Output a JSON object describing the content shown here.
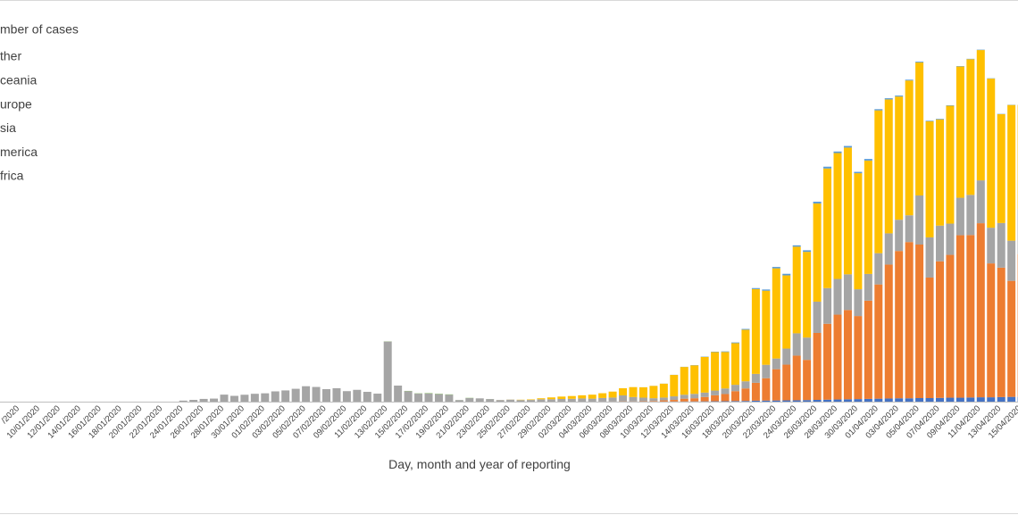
{
  "chart_data": {
    "type": "stacked-bar",
    "legend_title": "mber of cases",
    "x_axis_label": "Day, month and year of reporting",
    "ylim": [
      0,
      100000
    ],
    "categories": [
      "/2020",
      null,
      "10/01/2020",
      null,
      "12/01/2020",
      null,
      "14/01/2020",
      null,
      "16/01/2020",
      null,
      "18/01/2020",
      null,
      "20/01/2020",
      null,
      "22/01/2020",
      null,
      "24/01/2020",
      null,
      "26/01/2020",
      null,
      "28/01/2020",
      null,
      "30/01/2020",
      null,
      "01/02/2020",
      null,
      "03/02/2020",
      null,
      "05/02/2020",
      null,
      "07/02/2020",
      null,
      "09/02/2020",
      null,
      "11/02/2020",
      null,
      "13/02/2020",
      null,
      "15/02/2020",
      null,
      "17/02/2020",
      null,
      "19/02/2020",
      null,
      "21/02/2020",
      null,
      "23/02/2020",
      null,
      "25/02/2020",
      null,
      "27/02/2020",
      null,
      "29/02/2020",
      null,
      "02/03/2020",
      null,
      "04/03/2020",
      null,
      "06/03/2020",
      null,
      "08/03/2020",
      null,
      "10/03/2020",
      null,
      "12/03/2020",
      null,
      "14/03/2020",
      null,
      "16/03/2020",
      null,
      "18/03/2020",
      null,
      "20/03/2020",
      null,
      "22/03/2020",
      null,
      "24/03/2020",
      null,
      "26/03/2020",
      null,
      "28/03/2020",
      null,
      "30/03/2020",
      null,
      "01/04/2020",
      null,
      "03/04/2020",
      null,
      "05/04/2020",
      null,
      "07/04/2020",
      null,
      "09/04/2020",
      null,
      "11/04/2020",
      null,
      "13/04/2020",
      null,
      "15/04/2020"
    ],
    "series": [
      {
        "name": "frica",
        "color": "#4472c4",
        "values": [
          0,
          0,
          0,
          0,
          0,
          0,
          0,
          0,
          0,
          0,
          0,
          0,
          0,
          0,
          0,
          0,
          0,
          0,
          0,
          0,
          0,
          0,
          0,
          0,
          0,
          0,
          0,
          0,
          0,
          0,
          0,
          0,
          0,
          0,
          0,
          0,
          0,
          0,
          0,
          0,
          0,
          0,
          0,
          0,
          0,
          0,
          0,
          0,
          0,
          0,
          0,
          0,
          0,
          0,
          0,
          0,
          0,
          2,
          5,
          10,
          10,
          20,
          20,
          30,
          40,
          50,
          60,
          80,
          100,
          120,
          150,
          180,
          250,
          280,
          300,
          330,
          350,
          400,
          450,
          500,
          550,
          600,
          650,
          700,
          750,
          800,
          850,
          850,
          900,
          900,
          950,
          1000,
          1000,
          1050,
          1100,
          1100,
          1150,
          1200,
          1200
        ]
      },
      {
        "name": "merica",
        "color": "#ed7d31",
        "values": [
          0,
          0,
          0,
          0,
          0,
          0,
          0,
          0,
          0,
          0,
          0,
          0,
          0,
          0,
          0,
          0,
          0,
          0,
          0,
          0,
          0,
          0,
          0,
          0,
          0,
          0,
          0,
          0,
          0,
          0,
          0,
          0,
          0,
          0,
          0,
          0,
          0,
          0,
          0,
          0,
          0,
          0,
          0,
          0,
          0,
          0,
          0,
          0,
          0,
          0,
          0,
          0,
          0,
          0,
          0,
          5,
          10,
          20,
          30,
          70,
          50,
          100,
          150,
          300,
          400,
          700,
          800,
          1100,
          1500,
          1800,
          2500,
          3150,
          4500,
          5630,
          7880,
          9000,
          11250,
          10130,
          16880,
          19130,
          21380,
          22500,
          20930,
          24750,
          28800,
          33750,
          37130,
          39380,
          38700,
          30380,
          34430,
          36000,
          40950,
          40950,
          43880,
          33750,
          32630,
          29250,
          36000
        ]
      },
      {
        "name": "sia",
        "color": "#a5a5a5",
        "values": [
          0,
          0,
          0,
          0,
          0,
          0,
          0,
          0,
          0,
          0,
          0,
          0,
          0,
          0,
          0,
          0,
          260,
          450,
          690,
          770,
          1770,
          1460,
          1740,
          1980,
          2100,
          2590,
          2830,
          3240,
          3890,
          3700,
          3150,
          3390,
          2650,
          2980,
          2470,
          2020,
          15150,
          4050,
          2640,
          2010,
          2050,
          1890,
          1750,
          400,
          890,
          830,
          650,
          410,
          510,
          410,
          430,
          600,
          620,
          680,
          720,
          800,
          750,
          900,
          1000,
          1500,
          1100,
          900,
          700,
          700,
          900,
          1000,
          1100,
          1100,
          1200,
          1400,
          1600,
          1800,
          2250,
          3380,
          2700,
          4050,
          5630,
          5630,
          7880,
          9000,
          9000,
          9000,
          6750,
          6750,
          7880,
          7880,
          7880,
          6750,
          12380,
          10130,
          9000,
          7880,
          9450,
          10130,
          10800,
          9000,
          11250,
          10130,
          11250
        ]
      },
      {
        "name": "urope",
        "color": "#ffc000",
        "values": [
          0,
          0,
          0,
          0,
          0,
          0,
          0,
          0,
          0,
          0,
          0,
          0,
          0,
          0,
          0,
          0,
          0,
          0,
          0,
          0,
          0,
          0,
          0,
          0,
          0,
          0,
          0,
          0,
          0,
          0,
          0,
          0,
          0,
          0,
          0,
          0,
          0,
          0,
          0,
          0,
          0,
          0,
          0,
          0,
          0,
          0,
          0,
          10,
          20,
          80,
          130,
          250,
          450,
          600,
          700,
          800,
          1000,
          1200,
          1500,
          1800,
          2500,
          2600,
          3100,
          3500,
          5400,
          7000,
          7200,
          9000,
          9700,
          9200,
          10500,
          13000,
          21380,
          18680,
          22730,
          18450,
          21830,
          21600,
          24750,
          30150,
          31730,
          31950,
          29250,
          28580,
          36000,
          33750,
          31050,
          33980,
          33530,
          29250,
          26780,
          29700,
          33080,
          34200,
          32850,
          37580,
          27450,
          34200,
          26330
        ]
      },
      {
        "name": "ceania",
        "color": "#5b9bd5",
        "values": [
          0,
          0,
          0,
          0,
          0,
          0,
          0,
          0,
          0,
          0,
          0,
          0,
          0,
          0,
          0,
          0,
          0,
          0,
          0,
          0,
          0,
          0,
          0,
          0,
          0,
          0,
          0,
          0,
          0,
          0,
          0,
          0,
          0,
          0,
          0,
          0,
          0,
          0,
          0,
          0,
          0,
          0,
          0,
          0,
          0,
          0,
          0,
          0,
          0,
          0,
          0,
          0,
          0,
          0,
          0,
          0,
          0,
          0,
          1,
          2,
          5,
          10,
          15,
          20,
          30,
          40,
          60,
          80,
          100,
          150,
          180,
          200,
          250,
          300,
          350,
          400,
          350,
          400,
          450,
          450,
          400,
          400,
          350,
          400,
          300,
          300,
          250,
          200,
          200,
          150,
          150,
          120,
          100,
          100,
          100,
          80,
          70,
          60,
          50
        ]
      },
      {
        "name": "ther",
        "color": "#70ad47",
        "values": [
          0,
          0,
          0,
          0,
          0,
          0,
          0,
          0,
          0,
          0,
          0,
          0,
          0,
          0,
          0,
          0,
          0,
          0,
          0,
          0,
          0,
          0,
          0,
          0,
          0,
          0,
          0,
          0,
          0,
          0,
          0,
          0,
          0,
          0,
          0,
          0,
          44,
          0,
          67,
          70,
          99,
          88,
          79,
          13,
          57,
          0,
          14,
          0,
          0,
          0,
          0,
          0,
          0,
          0,
          0,
          0,
          0,
          0,
          0,
          0,
          0,
          0,
          0,
          0,
          0,
          0,
          0,
          0,
          0,
          0,
          0,
          0,
          0,
          0,
          0,
          0,
          0,
          0,
          0,
          0,
          0,
          0,
          0,
          0,
          0,
          0,
          0,
          0,
          0,
          0,
          0,
          0,
          0,
          0,
          0,
          0,
          0,
          0,
          0
        ]
      }
    ]
  }
}
